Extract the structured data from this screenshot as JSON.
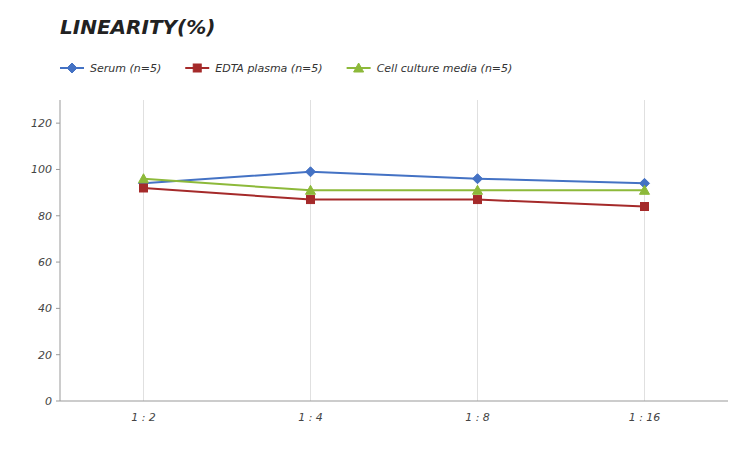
{
  "chart_data": {
    "type": "line",
    "title": "LINEARITY(%)",
    "categories": [
      "1 : 2",
      "1 : 4",
      "1 : 8",
      "1 : 16"
    ],
    "series": [
      {
        "name": "Serum (n=5)",
        "color": "#4472C4",
        "marker": "diamond",
        "values": [
          94,
          99,
          96,
          94
        ]
      },
      {
        "name": "EDTA plasma (n=5)",
        "color": "#A52A2A",
        "marker": "square",
        "values": [
          92,
          87,
          87,
          84
        ]
      },
      {
        "name": "Cell culture media (n=5)",
        "color": "#8DB93A",
        "marker": "triangle",
        "values": [
          96,
          91,
          91,
          91
        ]
      }
    ],
    "ylim": [
      0,
      130
    ],
    "yticks": [
      0,
      20,
      40,
      60,
      80,
      100,
      120
    ],
    "grid": "x",
    "legend": "top-left"
  }
}
